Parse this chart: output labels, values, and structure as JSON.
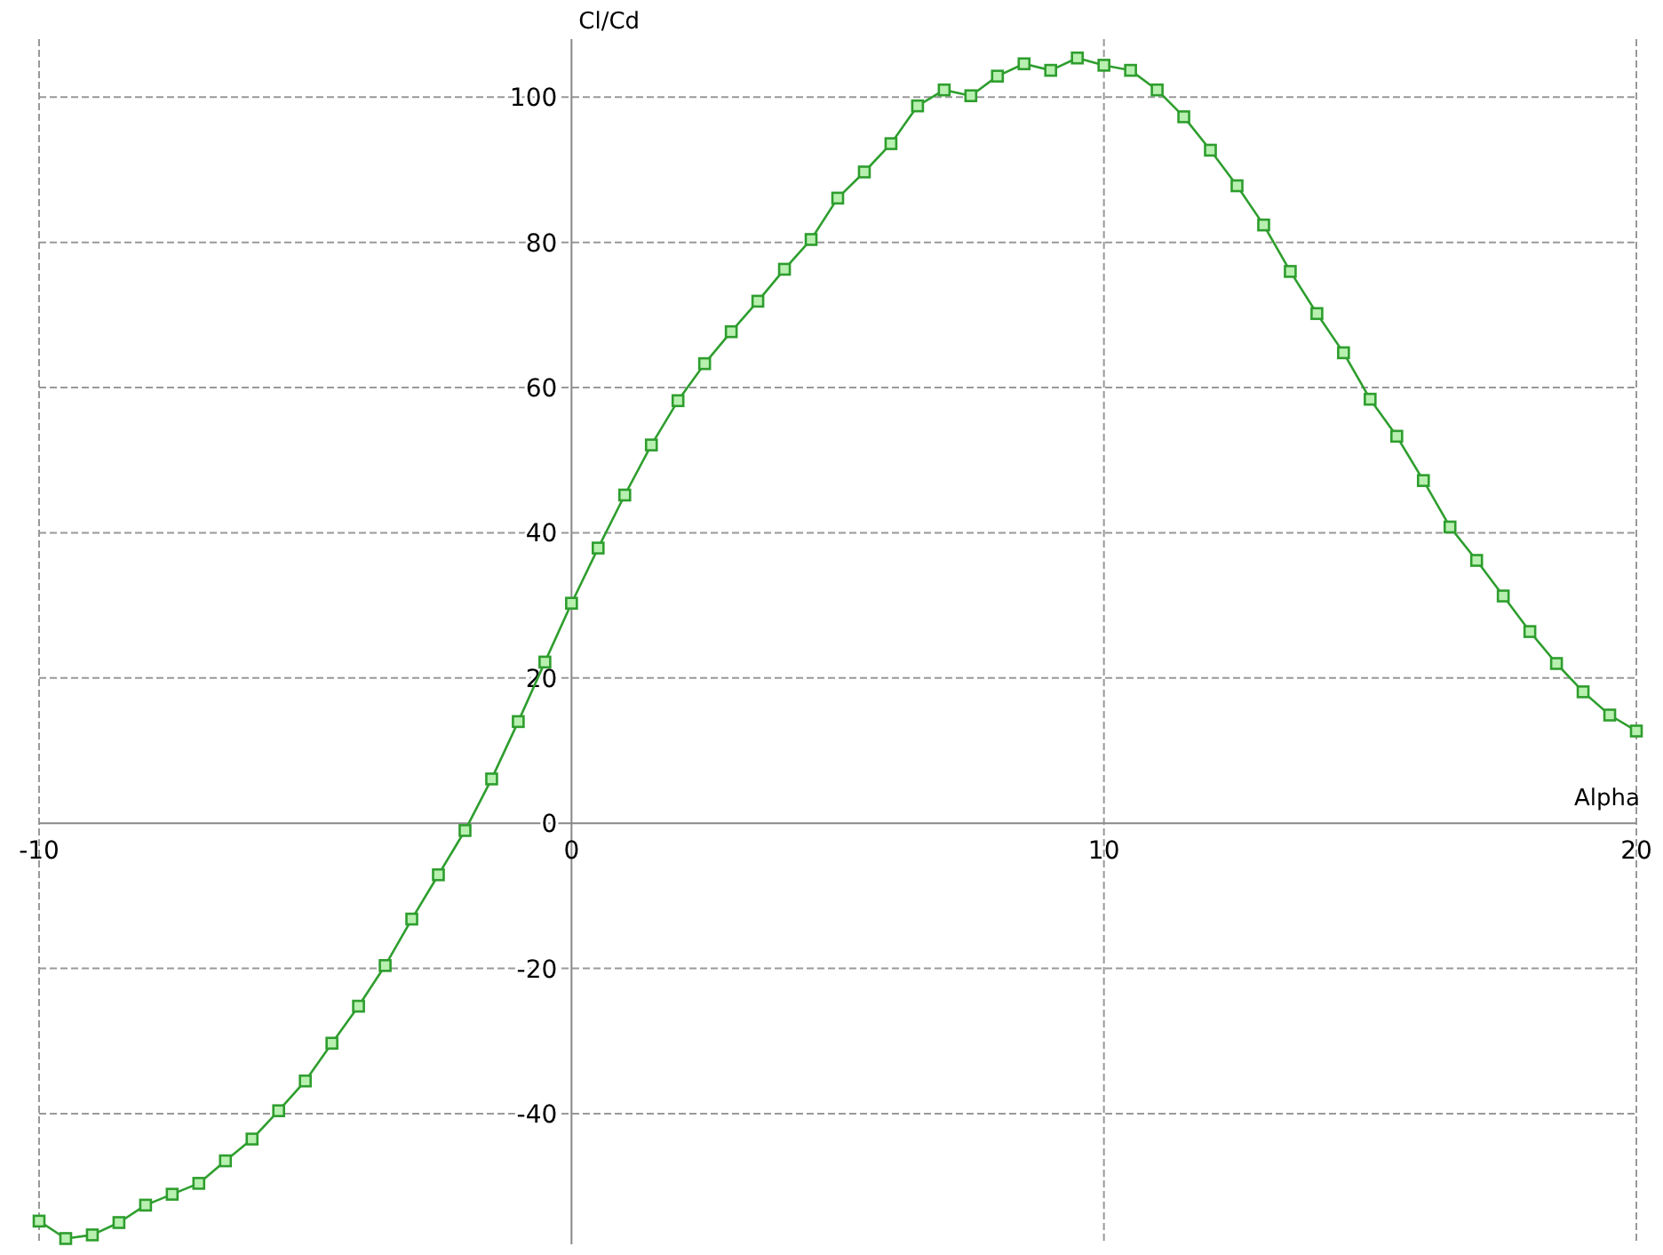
{
  "chart_data": {
    "type": "line",
    "xlabel": "Alpha",
    "ylabel": "Cl/Cd",
    "xlim": [
      -10,
      20
    ],
    "ylim": [
      -58,
      108
    ],
    "xticks": [
      -10,
      0,
      10,
      20
    ],
    "yticks": [
      -40,
      -20,
      0,
      20,
      40,
      60,
      80,
      100
    ],
    "grid": true,
    "marker": "square",
    "line_style": "solid",
    "x": [
      -10,
      -9.5,
      -9,
      -8.5,
      -8,
      -7.5,
      -7,
      -6.5,
      -6,
      -5.5,
      -5,
      -4.5,
      -4,
      -3.5,
      -3,
      -2.5,
      -2,
      -1.5,
      -1,
      -0.5,
      0,
      0.5,
      1,
      1.5,
      2,
      2.5,
      3,
      3.5,
      4,
      4.5,
      5,
      5.5,
      6,
      6.5,
      7,
      7.5,
      8,
      8.5,
      9,
      9.5,
      10,
      10.5,
      11,
      11.5,
      12,
      12.5,
      13,
      13.5,
      14,
      14.5,
      15,
      15.5,
      16,
      16.5,
      17,
      17.5,
      18,
      18.5,
      19,
      19.5,
      20
    ],
    "series": [
      {
        "color": "#2e9e2e",
        "values": [
          -54.8,
          -57.2,
          -56.7,
          -55,
          -52.6,
          -51.1,
          -49.6,
          -46.5,
          -43.5,
          -39.6,
          -35.5,
          -30.3,
          -25.2,
          -19.6,
          -13.2,
          -7.1,
          -1,
          6.1,
          14,
          22.2,
          30.3,
          37.9,
          45.2,
          52.1,
          58.2,
          63.3,
          67.7,
          71.9,
          76.3,
          80.4,
          86.1,
          89.7,
          93.6,
          98.8,
          101,
          100.2,
          102.9,
          104.6,
          103.7,
          105.4,
          104.4,
          103.7,
          101,
          97.3,
          92.7,
          87.8,
          82.4,
          76,
          70.2,
          64.8,
          58.4,
          53.3,
          47.2,
          40.8,
          36.2,
          31.3,
          26.4,
          22,
          18.1,
          14.9,
          12.7
        ]
      }
    ]
  }
}
